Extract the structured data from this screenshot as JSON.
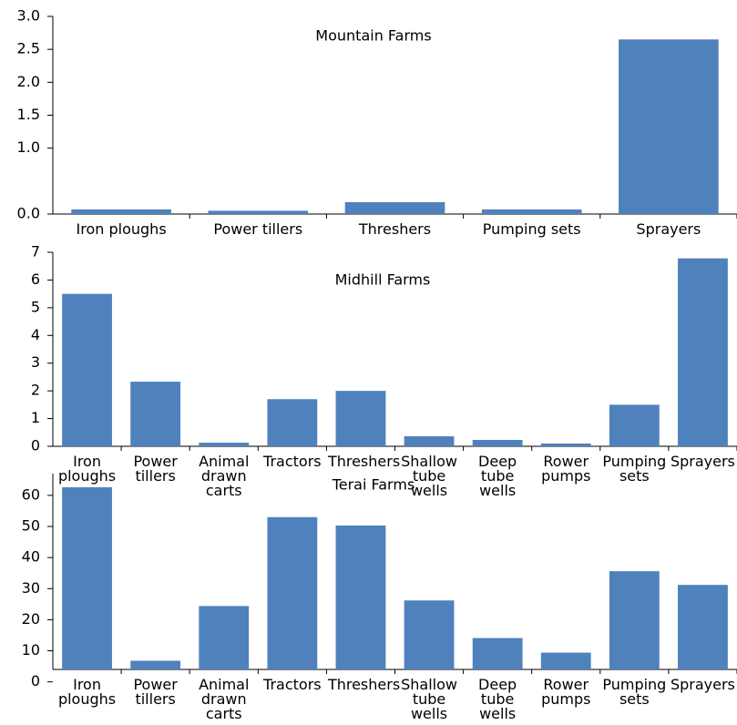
{
  "chart_data": [
    {
      "type": "bar",
      "title": "Mountain Farms",
      "categories": [
        "Iron ploughs",
        "Power tillers",
        "Threshers",
        "Pumping sets",
        "Sprayers"
      ],
      "values": [
        0.07,
        0.05,
        0.18,
        0.07,
        2.65
      ],
      "color": "#4f81bd",
      "ylim": [
        0,
        3
      ],
      "yticks": [
        {
          "value": 0,
          "label": "0.0"
        },
        {
          "value": 1,
          "label": "1.0"
        },
        1.5,
        {
          "value": 2,
          "label": "2.0"
        },
        2.5,
        {
          "value": 3,
          "label": "3.0"
        }
      ]
    },
    {
      "type": "bar",
      "title": "Midhill Farms",
      "categories": [
        "Iron ploughs",
        "Power tillers",
        "Animal drawn carts",
        "Tractors",
        "Threshers",
        "Shallow tube wells",
        "Deep tube wells",
        "Rower pumps",
        "Pumping sets",
        "Sprayers"
      ],
      "values": [
        5.5,
        2.33,
        0.13,
        1.7,
        2.0,
        0.36,
        0.23,
        0.1,
        1.5,
        6.78
      ],
      "color": "#4f81bd",
      "ylim": [
        0,
        7
      ],
      "yticks": [
        0,
        1,
        2,
        3,
        4,
        5,
        6,
        7
      ]
    },
    {
      "type": "bar",
      "title": "Terai Farms",
      "categories": [
        "Iron ploughs",
        "Power tillers",
        "Animal drawn carts",
        "Tractors",
        "Threshers",
        "Shallow tube wells",
        "Deep tube wells",
        "Rower pumps",
        "Pumping sets",
        "Sprayers"
      ],
      "values": [
        62.6,
        6.8,
        24.4,
        53,
        50.3,
        26.2,
        14.1,
        9.4,
        35.6,
        31.2
      ],
      "color": "#4f81bd",
      "ylim": [
        4,
        67
      ],
      "yticks": [
        0,
        10,
        20,
        30,
        40,
        50,
        60
      ]
    }
  ]
}
